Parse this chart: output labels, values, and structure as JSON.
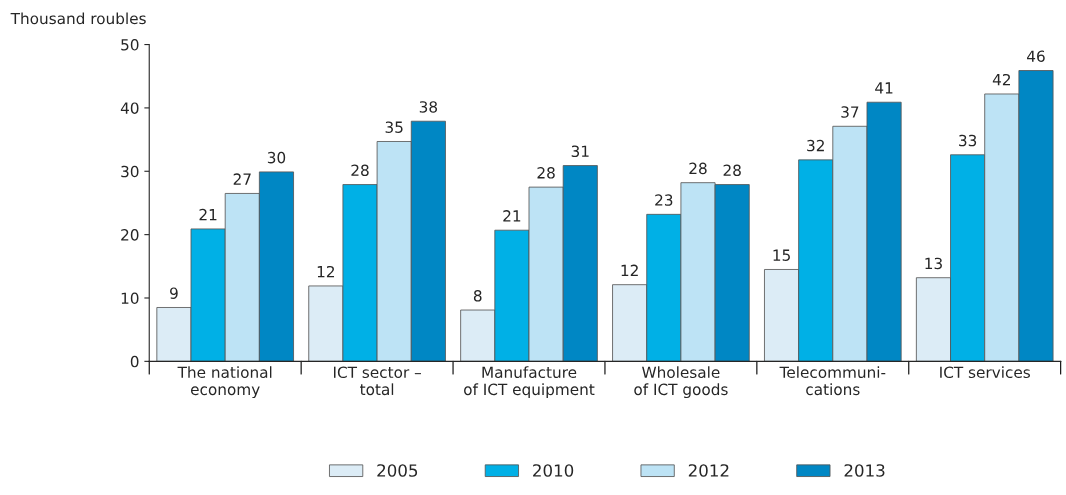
{
  "chart_data": {
    "type": "bar",
    "ylabel": "Thousand roubles",
    "categories": [
      "The national\neconomy",
      "ICT sector –\ntotal",
      "Manufacture\nof ICT equipment",
      "Wholesale\nof ICT goods",
      "Telecommuni-\ncations",
      "ICT services"
    ],
    "series": [
      {
        "name": "2005",
        "color": "#dcecf6",
        "values": [
          8.5,
          11.9,
          8.1,
          12.1,
          14.5,
          13.2
        ],
        "value_labels": [
          "9",
          "12",
          "8",
          "12",
          "15",
          "13"
        ]
      },
      {
        "name": "2010",
        "color": "#00b0e6",
        "values": [
          20.9,
          27.9,
          20.7,
          23.2,
          31.8,
          32.6
        ],
        "value_labels": [
          "21",
          "28",
          "21",
          "23",
          "32",
          "33"
        ]
      },
      {
        "name": "2012",
        "color": "#bde3f5",
        "values": [
          26.5,
          34.7,
          27.5,
          28.2,
          37.1,
          42.2
        ],
        "value_labels": [
          "27",
          "35",
          "28",
          "28",
          "37",
          "42"
        ]
      },
      {
        "name": "2013",
        "color": "#0087c4",
        "values": [
          29.9,
          37.9,
          30.9,
          27.9,
          40.9,
          45.9
        ],
        "value_labels": [
          "30",
          "38",
          "31",
          "28",
          "41",
          "46"
        ]
      }
    ],
    "ylim": [
      0,
      50
    ],
    "yticks": [
      0,
      10,
      20,
      30,
      40,
      50
    ],
    "grid": false,
    "legend": "bottom"
  }
}
